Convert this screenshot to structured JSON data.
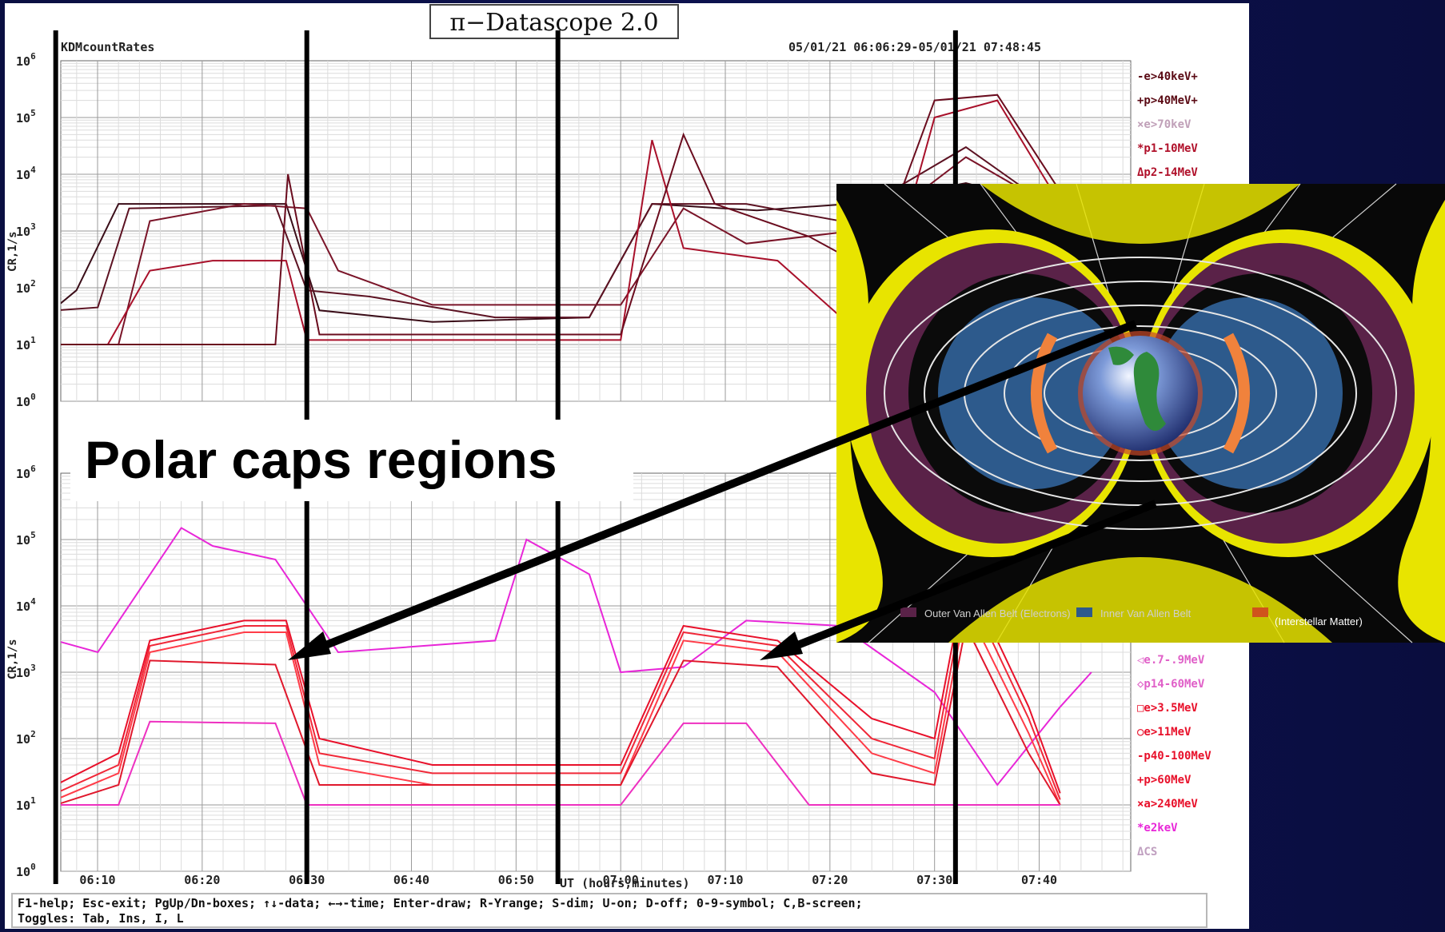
{
  "app": {
    "title": "π−Datascope 2.0"
  },
  "annotation": {
    "callout": "Polar caps regions"
  },
  "inset": {
    "legend_1": "Outer Van Allen Belt (Electrons)",
    "legend_2": "Inner Van Allen Belt",
    "legend_3": "(Interstellar Matter)"
  },
  "status": {
    "line1": "F1-help; Esc-exit; PgUp/Dn-boxes; ↑↓-data; ←→-time; Enter-draw; R-Yrange; S-dim; U-on; D-off; 0-9-symbol; C,B-screen;",
    "line2": "Toggles: Tab, Ins, I, L"
  },
  "colors": {
    "slide_bg": "#0c1045",
    "dark_series": "#5a0a14",
    "red_series": "#e8102a",
    "magenta_series": "#e826d8"
  },
  "chart_data": {
    "type": "line",
    "name": "KDMcountRates",
    "time_range": "05/01/21 06:06:29-05/01/21 07:48:45",
    "xlabel": "UT (hours,minutes)",
    "ylabel": "CR,1/s",
    "x_ticks": [
      "06:10",
      "06:20",
      "06:30",
      "06:40",
      "06:50",
      "07:00",
      "07:10",
      "07:20",
      "07:30",
      "07:40"
    ],
    "y_scale": "log",
    "xlim": [
      "06:06:29",
      "07:48:45"
    ],
    "marker_times": [
      "06:06",
      "06:30",
      "06:54",
      "07:32"
    ],
    "panels": [
      {
        "ylim": [
          1,
          1000000
        ],
        "y_ticks": [
          1,
          10,
          100,
          1000,
          10000,
          100000,
          1000000
        ],
        "legend": [
          {
            "label": "-e>40keV+",
            "color": "#5a0a14"
          },
          {
            "label": "+p>40MeV+",
            "color": "#5a0a14"
          },
          {
            "label": "×e>70keV",
            "color": "#c0a0b8"
          },
          {
            "label": "*p1-10MeV",
            "color": "#b0102a"
          },
          {
            "label": "Δp2-14MeV",
            "color": "#b0102a"
          }
        ],
        "series": [
          {
            "color": "#3a0d18",
            "points": [
              [
                6.1,
                45
              ],
              [
                6.133,
                90
              ],
              [
                6.2,
                3000
              ],
              [
                6.467,
                3000
              ],
              [
                6.52,
                40
              ],
              [
                6.7,
                25
              ],
              [
                6.95,
                30
              ],
              [
                7.05,
                3000
              ],
              [
                7.217,
                2300
              ],
              [
                7.4,
                3200
              ],
              [
                7.55,
                7000
              ],
              [
                7.7,
                2500
              ]
            ]
          },
          {
            "color": "#5c1222",
            "points": [
              [
                6.1,
                40
              ],
              [
                6.167,
                45
              ],
              [
                6.217,
                2500
              ],
              [
                6.45,
                2800
              ],
              [
                6.5,
                90
              ],
              [
                6.6,
                70
              ],
              [
                6.8,
                30
              ],
              [
                6.95,
                30
              ],
              [
                7.05,
                3000
              ],
              [
                7.2,
                3000
              ],
              [
                7.35,
                1500
              ],
              [
                7.55,
                30000
              ],
              [
                7.7,
                2000
              ]
            ]
          },
          {
            "color": "#7a1428",
            "points": [
              [
                6.1,
                10
              ],
              [
                6.2,
                10
              ],
              [
                6.25,
                1500
              ],
              [
                6.4,
                3000
              ],
              [
                6.5,
                2500
              ],
              [
                6.55,
                200
              ],
              [
                6.7,
                50
              ],
              [
                7.0,
                50
              ],
              [
                7.1,
                2500
              ],
              [
                7.2,
                600
              ],
              [
                7.4,
                1100
              ],
              [
                7.55,
                20000
              ],
              [
                7.7,
                2200
              ]
            ]
          },
          {
            "color": "#a8102a",
            "points": [
              [
                6.1,
                10
              ],
              [
                6.183,
                10
              ],
              [
                6.25,
                200
              ],
              [
                6.35,
                300
              ],
              [
                6.467,
                300
              ],
              [
                6.5,
                12
              ],
              [
                6.9,
                12
              ],
              [
                7.0,
                12
              ],
              [
                7.05,
                40000
              ],
              [
                7.1,
                500
              ],
              [
                7.25,
                300
              ],
              [
                7.4,
                10
              ],
              [
                7.5,
                100000
              ],
              [
                7.6,
                200000
              ],
              [
                7.7,
                3000
              ]
            ]
          },
          {
            "color": "#6a0c1e",
            "points": [
              [
                6.1,
                10
              ],
              [
                6.45,
                10
              ],
              [
                6.47,
                10000
              ],
              [
                6.52,
                15
              ],
              [
                7.0,
                15
              ],
              [
                7.1,
                50000
              ],
              [
                7.15,
                3000
              ],
              [
                7.3,
                800
              ],
              [
                7.4,
                200
              ],
              [
                7.5,
                200000
              ],
              [
                7.6,
                250000
              ],
              [
                7.7,
                5000
              ]
            ]
          }
        ]
      },
      {
        "ylim": [
          1,
          1000000
        ],
        "y_ticks": [
          1,
          10,
          100,
          1000,
          10000,
          100000,
          1000000
        ],
        "legend": [
          {
            "label": "◁e.7-.9MeV",
            "color": "#e060c8"
          },
          {
            "label": "◇p14-60MeV",
            "color": "#e060c8"
          },
          {
            "label": "□e>3.5MeV",
            "color": "#e8102a"
          },
          {
            "label": "○e>11MeV",
            "color": "#e8102a"
          },
          {
            "label": "-p40-100MeV",
            "color": "#e8102a"
          },
          {
            "label": "+p>60MeV",
            "color": "#e8102a"
          },
          {
            "label": "×a>240MeV",
            "color": "#e8102a"
          },
          {
            "label": "*e2keV",
            "color": "#e826d8"
          },
          {
            "label": "ΔCS",
            "color": "#c0a0c0"
          }
        ],
        "series": [
          {
            "color": "#e826d8",
            "points": [
              [
                6.1,
                3000
              ],
              [
                6.167,
                2000
              ],
              [
                6.3,
                150000
              ],
              [
                6.35,
                80000
              ],
              [
                6.45,
                50000
              ],
              [
                6.55,
                2000
              ],
              [
                6.8,
                3000
              ],
              [
                6.85,
                100000
              ],
              [
                6.95,
                30000
              ],
              [
                7.0,
                1000
              ],
              [
                7.1,
                1200
              ],
              [
                7.2,
                6000
              ],
              [
                7.35,
                5000
              ],
              [
                7.5,
                500
              ],
              [
                7.6,
                20
              ],
              [
                7.7,
                300
              ],
              [
                7.75,
                1000
              ]
            ]
          },
          {
            "color": "#e8102a",
            "points": [
              [
                6.1,
                20
              ],
              [
                6.2,
                60
              ],
              [
                6.25,
                3000
              ],
              [
                6.4,
                6000
              ],
              [
                6.467,
                6000
              ],
              [
                6.52,
                100
              ],
              [
                6.7,
                40
              ],
              [
                7.0,
                40
              ],
              [
                7.1,
                5000
              ],
              [
                7.25,
                3000
              ],
              [
                7.4,
                200
              ],
              [
                7.5,
                100
              ],
              [
                7.55,
                30000
              ],
              [
                7.65,
                300
              ],
              [
                7.7,
                15
              ]
            ]
          },
          {
            "color": "#f02838",
            "points": [
              [
                6.1,
                15
              ],
              [
                6.2,
                40
              ],
              [
                6.25,
                2500
              ],
              [
                6.4,
                5000
              ],
              [
                6.467,
                5000
              ],
              [
                6.52,
                60
              ],
              [
                6.7,
                30
              ],
              [
                7.0,
                30
              ],
              [
                7.1,
                4000
              ],
              [
                7.25,
                2500
              ],
              [
                7.4,
                100
              ],
              [
                7.5,
                50
              ],
              [
                7.55,
                20000
              ],
              [
                7.65,
                200
              ],
              [
                7.7,
                12
              ]
            ]
          },
          {
            "color": "#ff3c48",
            "points": [
              [
                6.1,
                12
              ],
              [
                6.2,
                30
              ],
              [
                6.25,
                2000
              ],
              [
                6.4,
                4000
              ],
              [
                6.467,
                4000
              ],
              [
                6.52,
                40
              ],
              [
                6.7,
                20
              ],
              [
                7.0,
                20
              ],
              [
                7.1,
                3000
              ],
              [
                7.25,
                2000
              ],
              [
                7.4,
                60
              ],
              [
                7.5,
                30
              ],
              [
                7.55,
                10000
              ],
              [
                7.65,
                120
              ],
              [
                7.7,
                10
              ]
            ]
          },
          {
            "color": "#e0182c",
            "points": [
              [
                6.1,
                10
              ],
              [
                6.2,
                20
              ],
              [
                6.25,
                1500
              ],
              [
                6.45,
                1300
              ],
              [
                6.52,
                20
              ],
              [
                7.0,
                20
              ],
              [
                7.1,
                1500
              ],
              [
                7.25,
                1200
              ],
              [
                7.4,
                30
              ],
              [
                7.5,
                20
              ],
              [
                7.55,
                5000
              ],
              [
                7.65,
                60
              ],
              [
                7.7,
                10
              ]
            ]
          },
          {
            "color": "#ee30c0",
            "points": [
              [
                6.1,
                10
              ],
              [
                6.2,
                10
              ],
              [
                6.25,
                180
              ],
              [
                6.45,
                170
              ],
              [
                6.5,
                10
              ],
              [
                6.6,
                10
              ],
              [
                7.0,
                10
              ],
              [
                7.1,
                170
              ],
              [
                7.2,
                170
              ],
              [
                7.3,
                10
              ],
              [
                7.5,
                10
              ],
              [
                7.6,
                10
              ],
              [
                7.7,
                10
              ]
            ]
          }
        ]
      }
    ]
  }
}
